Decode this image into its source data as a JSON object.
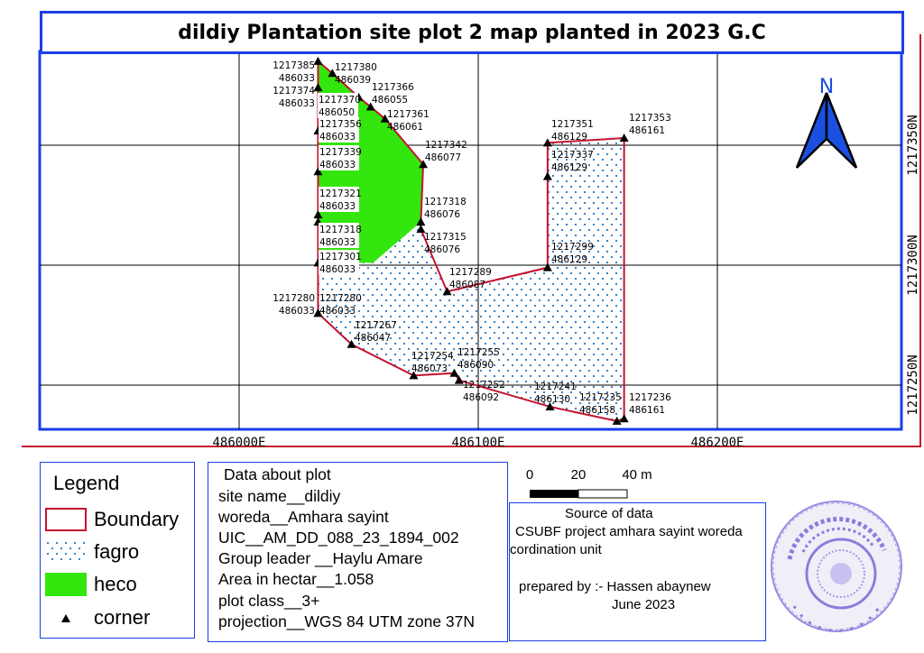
{
  "title": "dildiy Plantation site plot 2 map planted in 2023 G.C",
  "colors": {
    "frame": "#1a3ee8",
    "boundary": "#c4122f",
    "heco": "#33e60d",
    "fagro_dots": "#3b82c4",
    "stamp": "#6a4fd0"
  },
  "grid": {
    "eastings": [
      "486000E",
      "486100E",
      "486200E"
    ],
    "northings": [
      "1217350N",
      "1217300N",
      "1217250N"
    ]
  },
  "north_arrow": {
    "label": "N",
    "icon": "north-arrow-icon"
  },
  "corners": [
    {
      "n": "1217385",
      "e": "486033"
    },
    {
      "n": "1217380",
      "e": "486039"
    },
    {
      "n": "1217374",
      "e": "486033"
    },
    {
      "n": "1217370",
      "e": "486050"
    },
    {
      "n": "1217366",
      "e": "486055"
    },
    {
      "n": "1217361",
      "e": "486061"
    },
    {
      "n": "1217356",
      "e": "486033"
    },
    {
      "n": "1217342",
      "e": "486077"
    },
    {
      "n": "1217339",
      "e": "486033"
    },
    {
      "n": "1217321",
      "e": "486033"
    },
    {
      "n": "1217318",
      "e": "486076"
    },
    {
      "n": "1217318",
      "e": "486033"
    },
    {
      "n": "1217315",
      "e": "486076"
    },
    {
      "n": "1217301",
      "e": "486033"
    },
    {
      "n": "1217289",
      "e": "486087"
    },
    {
      "n": "1217299",
      "e": "486129"
    },
    {
      "n": "1217337",
      "e": "486129"
    },
    {
      "n": "1217351",
      "e": "486129"
    },
    {
      "n": "1217353",
      "e": "486161"
    },
    {
      "n": "1217280",
      "e": "486033"
    },
    {
      "n": "1217280",
      "e": "486033"
    },
    {
      "n": "1217267",
      "e": "486047"
    },
    {
      "n": "1217254",
      "e": "486073"
    },
    {
      "n": "1217255",
      "e": "486090"
    },
    {
      "n": "1217252",
      "e": "486092"
    },
    {
      "n": "1217241",
      "e": "486130"
    },
    {
      "n": "1217235",
      "e": "486158"
    },
    {
      "n": "1217236",
      "e": "486161"
    }
  ],
  "legend": {
    "title": "Legend",
    "items": [
      {
        "label": "Boundary",
        "symbol": "red-outline-box"
      },
      {
        "label": "fagro",
        "symbol": "blue-dotted-box"
      },
      {
        "label": "heco",
        "symbol": "green-fill-box"
      },
      {
        "label": "corner",
        "symbol": "black-triangle"
      }
    ]
  },
  "plot_data": {
    "heading": "Data about plot",
    "lines": [
      "site name__dildiy",
      "woreda__Amhara sayint",
      "UIC__AM_DD_088_23_1894_002",
      "Group leader __Haylu Amare",
      "Area in hectar__1.058",
      "plot class__3+",
      "projection__WGS 84 UTM zone 37N"
    ]
  },
  "scale_bar": {
    "labels": [
      "0",
      "20",
      "40 m"
    ],
    "unit": "m",
    "max": 40
  },
  "source": {
    "heading": "Source of data",
    "line1": "CSUBF project amhara sayint woreda",
    "line2": "cordination unit",
    "prepared": "prepared by :- Hassen abaynew",
    "date": "June 2023"
  },
  "stamp": {
    "type": "official-seal",
    "text": "Amharic seal text"
  }
}
